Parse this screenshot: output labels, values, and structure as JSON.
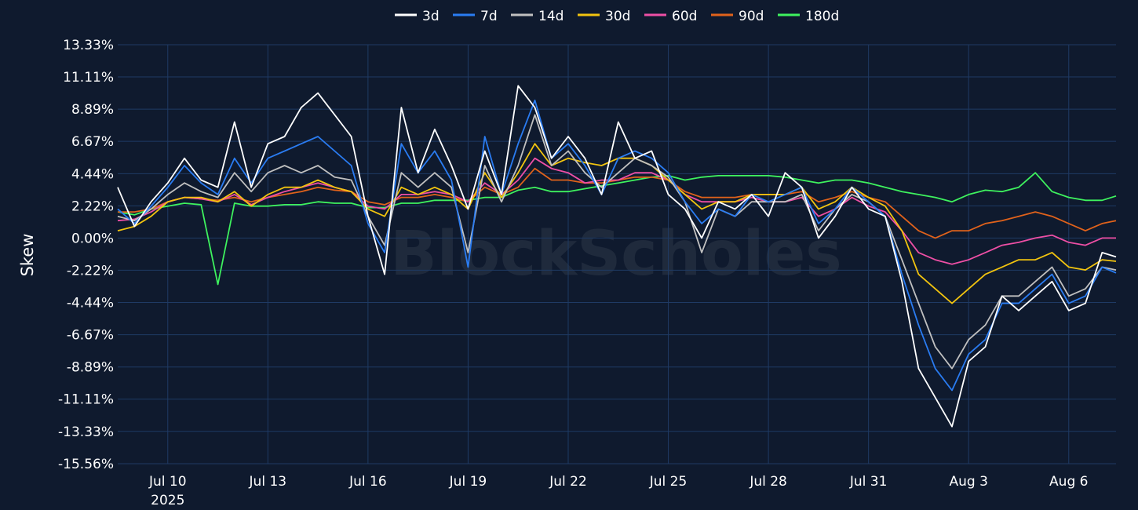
{
  "chart_data": {
    "type": "line",
    "ylabel": "Skew",
    "watermark": "BlockScholes",
    "legend_position": "top-center",
    "grid": true,
    "ylim": [
      -15.56,
      13.33
    ],
    "y_ticks": [
      {
        "value": 13.33,
        "label": "13.33%"
      },
      {
        "value": 11.11,
        "label": "11.11%"
      },
      {
        "value": 8.89,
        "label": "8.89%"
      },
      {
        "value": 6.67,
        "label": "6.67%"
      },
      {
        "value": 4.44,
        "label": "4.44%"
      },
      {
        "value": 2.22,
        "label": "2.22%"
      },
      {
        "value": 0.0,
        "label": "0.00%"
      },
      {
        "value": -2.22,
        "label": "-2.22%"
      },
      {
        "value": -4.44,
        "label": "-4.44%"
      },
      {
        "value": -6.67,
        "label": "-6.67%"
      },
      {
        "value": -8.89,
        "label": "-8.89%"
      },
      {
        "value": -11.11,
        "label": "-11.11%"
      },
      {
        "value": -13.33,
        "label": "-13.33%"
      },
      {
        "value": -15.56,
        "label": "-15.56%"
      }
    ],
    "xlim": [
      "2025-07-08T12:00",
      "2025-08-07T10:00"
    ],
    "x_ticks": [
      {
        "date": "2025-07-10",
        "label": "Jul 10",
        "sublabel": "2025"
      },
      {
        "date": "2025-07-13",
        "label": "Jul 13"
      },
      {
        "date": "2025-07-16",
        "label": "Jul 16"
      },
      {
        "date": "2025-07-19",
        "label": "Jul 19"
      },
      {
        "date": "2025-07-22",
        "label": "Jul 22"
      },
      {
        "date": "2025-07-25",
        "label": "Jul 25"
      },
      {
        "date": "2025-07-28",
        "label": "Jul 28"
      },
      {
        "date": "2025-07-31",
        "label": "Jul 31"
      },
      {
        "date": "2025-08-03",
        "label": "Aug 3"
      },
      {
        "date": "2025-08-06",
        "label": "Aug 6"
      }
    ],
    "x": [
      "2025-07-08T12:00",
      "2025-07-09T00:00",
      "2025-07-09T12:00",
      "2025-07-10T00:00",
      "2025-07-10T12:00",
      "2025-07-11T00:00",
      "2025-07-11T12:00",
      "2025-07-12T00:00",
      "2025-07-12T12:00",
      "2025-07-13T00:00",
      "2025-07-13T12:00",
      "2025-07-14T00:00",
      "2025-07-14T12:00",
      "2025-07-15T00:00",
      "2025-07-15T12:00",
      "2025-07-16T00:00",
      "2025-07-16T12:00",
      "2025-07-17T00:00",
      "2025-07-17T12:00",
      "2025-07-18T00:00",
      "2025-07-18T12:00",
      "2025-07-19T00:00",
      "2025-07-19T12:00",
      "2025-07-20T00:00",
      "2025-07-20T12:00",
      "2025-07-21T00:00",
      "2025-07-21T12:00",
      "2025-07-22T00:00",
      "2025-07-22T12:00",
      "2025-07-23T00:00",
      "2025-07-23T12:00",
      "2025-07-24T00:00",
      "2025-07-24T12:00",
      "2025-07-25T00:00",
      "2025-07-25T12:00",
      "2025-07-26T00:00",
      "2025-07-26T12:00",
      "2025-07-27T00:00",
      "2025-07-27T12:00",
      "2025-07-28T00:00",
      "2025-07-28T12:00",
      "2025-07-29T00:00",
      "2025-07-29T12:00",
      "2025-07-30T00:00",
      "2025-07-30T12:00",
      "2025-07-31T00:00",
      "2025-07-31T12:00",
      "2025-08-01T00:00",
      "2025-08-01T12:00",
      "2025-08-02T00:00",
      "2025-08-02T12:00",
      "2025-08-03T00:00",
      "2025-08-03T12:00",
      "2025-08-04T00:00",
      "2025-08-04T12:00",
      "2025-08-05T00:00",
      "2025-08-05T12:00",
      "2025-08-06T00:00",
      "2025-08-06T12:00",
      "2025-08-07T00:00",
      "2025-08-07T10:00"
    ],
    "series": [
      {
        "name": "3d",
        "color": "#ffffff",
        "values": [
          3.5,
          0.8,
          2.5,
          3.8,
          5.5,
          4.0,
          3.5,
          8.0,
          3.5,
          6.5,
          7.0,
          9.0,
          10.0,
          8.5,
          7.0,
          1.5,
          -2.5,
          9.0,
          4.5,
          7.5,
          5.0,
          2.0,
          6.0,
          3.0,
          10.5,
          9.0,
          5.5,
          7.0,
          5.5,
          3.0,
          8.0,
          5.5,
          6.0,
          3.0,
          2.0,
          0.0,
          2.5,
          2.0,
          3.0,
          1.5,
          4.5,
          3.5,
          0.0,
          1.5,
          3.5,
          2.0,
          1.5,
          -3.0,
          -9.0,
          -11.0,
          -13.0,
          -8.5,
          -7.5,
          -4.0,
          -5.0,
          -4.0,
          -3.0,
          -5.0,
          -4.5,
          -1.0,
          -1.3
        ]
      },
      {
        "name": "7d",
        "color": "#2a7cf2",
        "values": [
          2.0,
          1.0,
          2.2,
          3.5,
          5.0,
          3.8,
          3.0,
          5.5,
          3.8,
          5.5,
          6.0,
          6.5,
          7.0,
          6.0,
          5.0,
          1.0,
          -1.0,
          6.5,
          4.5,
          6.0,
          4.0,
          -2.0,
          7.0,
          3.0,
          6.5,
          9.5,
          5.5,
          6.5,
          5.0,
          3.0,
          5.5,
          6.0,
          5.5,
          4.5,
          2.5,
          1.0,
          2.0,
          1.5,
          3.0,
          2.5,
          3.0,
          3.5,
          1.0,
          2.0,
          3.5,
          2.5,
          1.5,
          -2.5,
          -6.0,
          -9.0,
          -10.5,
          -8.0,
          -7.0,
          -4.5,
          -4.5,
          -3.5,
          -2.5,
          -4.5,
          -4.0,
          -2.0,
          -2.4
        ]
      },
      {
        "name": "14d",
        "color": "#c0c0c0",
        "values": [
          1.5,
          1.2,
          2.0,
          3.0,
          3.8,
          3.2,
          2.8,
          4.5,
          3.2,
          4.5,
          5.0,
          4.5,
          5.0,
          4.2,
          4.0,
          1.5,
          -0.5,
          4.5,
          3.5,
          4.5,
          3.5,
          -1.0,
          5.0,
          2.5,
          5.0,
          8.5,
          5.0,
          6.0,
          4.5,
          3.5,
          4.5,
          5.5,
          5.0,
          4.2,
          2.5,
          -1.0,
          2.0,
          1.5,
          2.5,
          2.5,
          2.5,
          3.0,
          0.5,
          2.0,
          3.0,
          2.5,
          1.5,
          -1.5,
          -4.5,
          -7.5,
          -9.0,
          -7.0,
          -6.0,
          -4.0,
          -4.0,
          -3.0,
          -2.0,
          -4.0,
          -3.5,
          -2.0,
          -2.2
        ]
      },
      {
        "name": "30d",
        "color": "#f2c40f",
        "values": [
          0.5,
          0.8,
          1.5,
          2.5,
          2.8,
          2.8,
          2.5,
          3.2,
          2.2,
          3.0,
          3.5,
          3.5,
          4.0,
          3.5,
          3.2,
          2.0,
          1.5,
          3.5,
          3.0,
          3.5,
          3.0,
          2.0,
          4.5,
          2.8,
          4.5,
          6.5,
          5.0,
          5.5,
          5.2,
          5.0,
          5.5,
          5.5,
          5.0,
          4.0,
          3.0,
          2.0,
          2.5,
          2.5,
          3.0,
          3.0,
          3.0,
          3.5,
          2.0,
          2.5,
          3.5,
          2.8,
          2.2,
          0.5,
          -2.5,
          -3.5,
          -4.5,
          -3.5,
          -2.5,
          -2.0,
          -1.5,
          -1.5,
          -1.0,
          -2.0,
          -2.2,
          -1.5,
          -1.6
        ]
      },
      {
        "name": "60d",
        "color": "#ee4fa5",
        "values": [
          1.2,
          1.3,
          1.8,
          2.5,
          2.8,
          2.7,
          2.5,
          3.0,
          2.3,
          2.8,
          3.2,
          3.5,
          3.8,
          3.5,
          3.2,
          2.2,
          2.0,
          3.0,
          3.0,
          3.2,
          3.0,
          2.5,
          3.8,
          3.0,
          4.0,
          5.5,
          4.8,
          4.5,
          3.8,
          4.0,
          4.0,
          4.5,
          4.5,
          4.0,
          3.0,
          2.5,
          2.5,
          2.5,
          2.8,
          2.5,
          2.5,
          2.8,
          1.5,
          2.0,
          2.8,
          2.2,
          1.8,
          0.5,
          -1.0,
          -1.5,
          -1.8,
          -1.5,
          -1.0,
          -0.5,
          -0.3,
          0.0,
          0.2,
          -0.3,
          -0.5,
          0.0,
          0.0
        ]
      },
      {
        "name": "90d",
        "color": "#e0621b",
        "values": [
          1.8,
          1.8,
          2.0,
          2.5,
          2.8,
          2.7,
          2.6,
          2.8,
          2.5,
          2.8,
          3.0,
          3.2,
          3.5,
          3.3,
          3.2,
          2.5,
          2.3,
          2.8,
          2.8,
          3.0,
          2.8,
          2.5,
          3.5,
          3.0,
          3.5,
          4.8,
          4.0,
          4.0,
          3.8,
          3.8,
          4.0,
          4.2,
          4.2,
          4.0,
          3.2,
          2.8,
          2.8,
          2.8,
          3.0,
          3.0,
          3.0,
          3.2,
          2.5,
          2.8,
          3.2,
          2.8,
          2.5,
          1.5,
          0.5,
          0.0,
          0.5,
          0.5,
          1.0,
          1.2,
          1.5,
          1.8,
          1.5,
          1.0,
          0.5,
          1.0,
          1.2
        ]
      },
      {
        "name": "180d",
        "color": "#3ef25e",
        "values": [
          1.8,
          1.6,
          2.0,
          2.2,
          2.4,
          2.3,
          -3.2,
          2.4,
          2.2,
          2.2,
          2.3,
          2.3,
          2.5,
          2.4,
          2.4,
          2.1,
          2.1,
          2.4,
          2.4,
          2.6,
          2.6,
          2.6,
          2.8,
          2.8,
          3.3,
          3.5,
          3.2,
          3.2,
          3.4,
          3.6,
          3.8,
          4.0,
          4.2,
          4.3,
          4.0,
          4.2,
          4.3,
          4.3,
          4.3,
          4.3,
          4.2,
          4.0,
          3.8,
          4.0,
          4.0,
          3.8,
          3.5,
          3.2,
          3.0,
          2.8,
          2.5,
          3.0,
          3.3,
          3.2,
          3.5,
          4.5,
          3.2,
          2.8,
          2.6,
          2.6,
          2.9
        ]
      }
    ]
  }
}
